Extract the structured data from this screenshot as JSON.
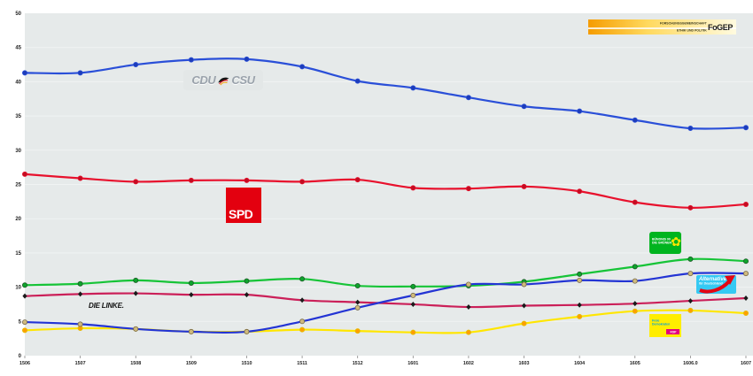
{
  "page": {
    "background": "#ffffff"
  },
  "chart_data": {
    "type": "line",
    "title": "",
    "xlabel": "",
    "ylabel": "",
    "ylim": [
      0,
      50
    ],
    "grid": "faint horizontal lines every 5 units",
    "legend_position": "party logos placed inline next to their lines",
    "plot_background": "#e6eaea",
    "x_tick_labels": [
      "1506",
      "1507",
      "1508",
      "1509",
      "1510",
      "1511",
      "1512",
      "1601",
      "1602",
      "1603",
      "1604",
      "1605",
      "1606.0",
      "1607"
    ],
    "y_ticks": [
      0,
      5,
      10,
      15,
      20,
      25,
      30,
      35,
      40,
      45,
      50
    ],
    "series": [
      {
        "name": "CDU/CSU",
        "z": 6,
        "line_color": "#2a4fd8",
        "marker": "circle",
        "marker_fill": "#1d3cb8",
        "marker_stroke": "#2a4fd8",
        "values": [
          41.3,
          41.3,
          42.5,
          43.2,
          43.3,
          42.2,
          40.1,
          39.1,
          37.7,
          36.4,
          35.7,
          34.4,
          33.2,
          33.3
        ]
      },
      {
        "name": "SPD",
        "z": 5,
        "line_color": "#e8112d",
        "marker": "circle",
        "marker_fill": "#c10d22",
        "marker_stroke": "#e8112d",
        "values": [
          26.5,
          25.9,
          25.4,
          25.6,
          25.6,
          25.4,
          25.7,
          24.5,
          24.4,
          24.7,
          24.0,
          22.4,
          21.6,
          22.1
        ]
      },
      {
        "name": "GRÜNE",
        "z": 3,
        "line_color": "#16c437",
        "marker": "circle",
        "marker_fill": "#0ea32c",
        "marker_stroke": "#1c5a26",
        "values": [
          10.3,
          10.5,
          11.0,
          10.6,
          10.9,
          11.2,
          10.2,
          10.1,
          10.2,
          10.8,
          11.9,
          13.0,
          14.1,
          13.8
        ]
      },
      {
        "name": "DIE LINKE",
        "z": 2,
        "line_color": "#cb2059",
        "marker": "diamond",
        "marker_fill": "#1a1a1a",
        "marker_stroke": "#1a1a1a",
        "values": [
          8.7,
          9.0,
          9.1,
          8.9,
          8.9,
          8.1,
          7.8,
          7.5,
          7.1,
          7.3,
          7.4,
          7.6,
          8.0,
          8.4
        ]
      },
      {
        "name": "AfD",
        "z": 4,
        "line_color": "#2334d4",
        "marker": "circle",
        "marker_fill": "#cfba7d",
        "marker_stroke": "#77694a",
        "values": [
          4.9,
          4.6,
          3.9,
          3.5,
          3.5,
          5.0,
          7.0,
          8.8,
          10.4,
          10.4,
          11.0,
          10.9,
          12.0,
          12.0
        ]
      },
      {
        "name": "FDP",
        "z": 1,
        "line_color": "#ffe600",
        "marker": "circle",
        "marker_fill": "#ff9e00",
        "marker_stroke": "#e3bd00",
        "values": [
          3.7,
          4.0,
          3.9,
          3.5,
          3.5,
          3.8,
          3.6,
          3.4,
          3.4,
          4.7,
          5.7,
          6.5,
          6.6,
          6.2
        ]
      }
    ]
  },
  "logos": {
    "cdu_csu": {
      "cdu": "CDU",
      "csu": "CSU"
    },
    "spd": {
      "label": "SPD"
    },
    "linke": {
      "label": "DIE LINKE."
    },
    "gruene": {
      "line1": "BÜNDNIS 90",
      "line2": "DIE GRÜNEN"
    },
    "afd": {
      "line1": "Alternative",
      "line2": "für Deutschland"
    },
    "fdp": {
      "line1": "Freie",
      "line2": "Demokraten",
      "badge": "FDP"
    },
    "fogep": {
      "line1": "FORSCHUNGSGEMEINSCHAFT",
      "line2": "ETHIK UND POLITIK",
      "brand": "FoGEP"
    }
  },
  "colors": {
    "spd_red": "#e3000f",
    "gruene_green": "#00b41f",
    "afd_cyan": "#35c9f3",
    "afd_arrow_red": "#e30613",
    "fdp_yellow": "#ffed00",
    "fdp_magenta": "#e5007d",
    "fdp_blue": "#00a0de",
    "cdu_gray": "#9aa2ab",
    "fogep_orange": "#f59c00",
    "axis_text": "#222222"
  }
}
